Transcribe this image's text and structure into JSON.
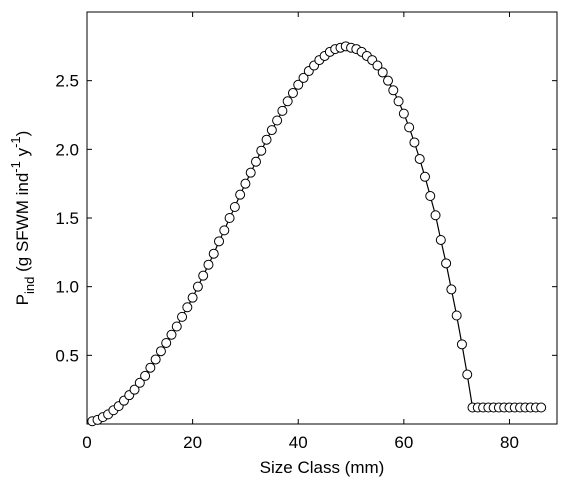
{
  "chart_data": {
    "type": "line",
    "x_label": "Size Class (mm)",
    "y_label_parts": [
      "P",
      "ind",
      " (g SFWM ind",
      "-1",
      " y",
      "-1",
      ")"
    ],
    "x": [
      1,
      2,
      3,
      4,
      5,
      6,
      7,
      8,
      9,
      10,
      11,
      12,
      13,
      14,
      15,
      16,
      17,
      18,
      19,
      20,
      21,
      22,
      23,
      24,
      25,
      26,
      27,
      28,
      29,
      30,
      31,
      32,
      33,
      34,
      35,
      36,
      37,
      38,
      39,
      40,
      41,
      42,
      43,
      44,
      45,
      46,
      47,
      48,
      49,
      50,
      51,
      52,
      53,
      54,
      55,
      56,
      57,
      58,
      59,
      60,
      61,
      62,
      63,
      64,
      65,
      66,
      67,
      68,
      69,
      70,
      71,
      72,
      73,
      74,
      75,
      76,
      77,
      78,
      79,
      80,
      81,
      82,
      83,
      84,
      85,
      86
    ],
    "series": [
      {
        "color": "#000000",
        "values": [
          0.02,
          0.03,
          0.05,
          0.07,
          0.1,
          0.13,
          0.17,
          0.21,
          0.25,
          0.3,
          0.35,
          0.41,
          0.47,
          0.53,
          0.59,
          0.65,
          0.71,
          0.78,
          0.85,
          0.92,
          1.0,
          1.08,
          1.16,
          1.24,
          1.33,
          1.41,
          1.5,
          1.58,
          1.67,
          1.75,
          1.83,
          1.91,
          1.99,
          2.07,
          2.14,
          2.21,
          2.28,
          2.35,
          2.41,
          2.47,
          2.52,
          2.57,
          2.61,
          2.65,
          2.68,
          2.71,
          2.73,
          2.74,
          2.75,
          2.74,
          2.73,
          2.71,
          2.68,
          2.65,
          2.61,
          2.56,
          2.5,
          2.43,
          2.35,
          2.26,
          2.16,
          2.05,
          1.93,
          1.8,
          1.66,
          1.52,
          1.34,
          1.17,
          0.98,
          0.79,
          0.58,
          0.36,
          0.12,
          0.12,
          0.12,
          0.12,
          0.12,
          0.12,
          0.12,
          0.12,
          0.12,
          0.12,
          0.12,
          0.12,
          0.12,
          0.12
        ]
      }
    ],
    "xlim": [
      0,
      89
    ],
    "xticks": [
      0,
      20,
      40,
      60,
      80
    ],
    "ylim": [
      0,
      3
    ],
    "yticks": [
      0.5,
      {
        "value": 1,
        "label": "1.0"
      },
      1.5,
      {
        "value": 2,
        "label": "2.0"
      },
      2.5
    ],
    "grid": false,
    "marker": "circle"
  }
}
